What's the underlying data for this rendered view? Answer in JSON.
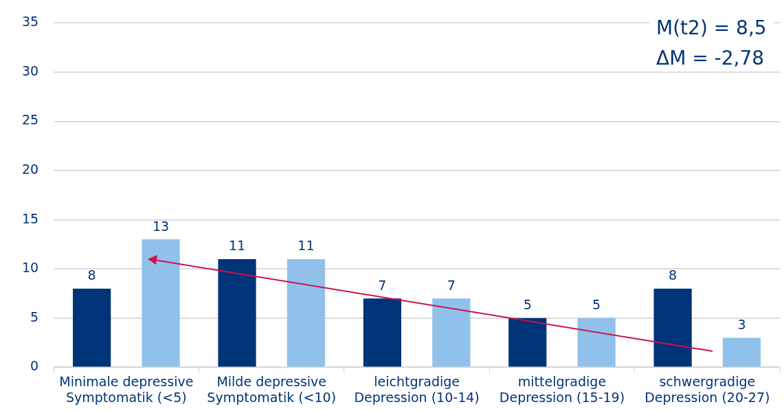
{
  "chart_data": {
    "type": "bar",
    "categories": [
      "Minimale depressive\nSymptomatik (<5)",
      "Milde depressive\nSymptomatik (<10)",
      "leichtgradige\nDepression (10-14)",
      "mittelgradige\nDepression (15-19)",
      "schwergradige\nDepression (20-27)"
    ],
    "series": [
      {
        "color": "#003478",
        "values": [
          8,
          11,
          7,
          5,
          8
        ]
      },
      {
        "color": "#8fc1ea",
        "values": [
          13,
          11,
          7,
          5,
          3
        ]
      }
    ],
    "ylim": [
      0,
      35
    ],
    "yticks": [
      0,
      5,
      10,
      15,
      20,
      25,
      30,
      35
    ],
    "grid": "y",
    "legend": false,
    "data_labels": true,
    "annotations": [
      "M(t2) = 8,5",
      "ΔM = -2,78"
    ]
  }
}
